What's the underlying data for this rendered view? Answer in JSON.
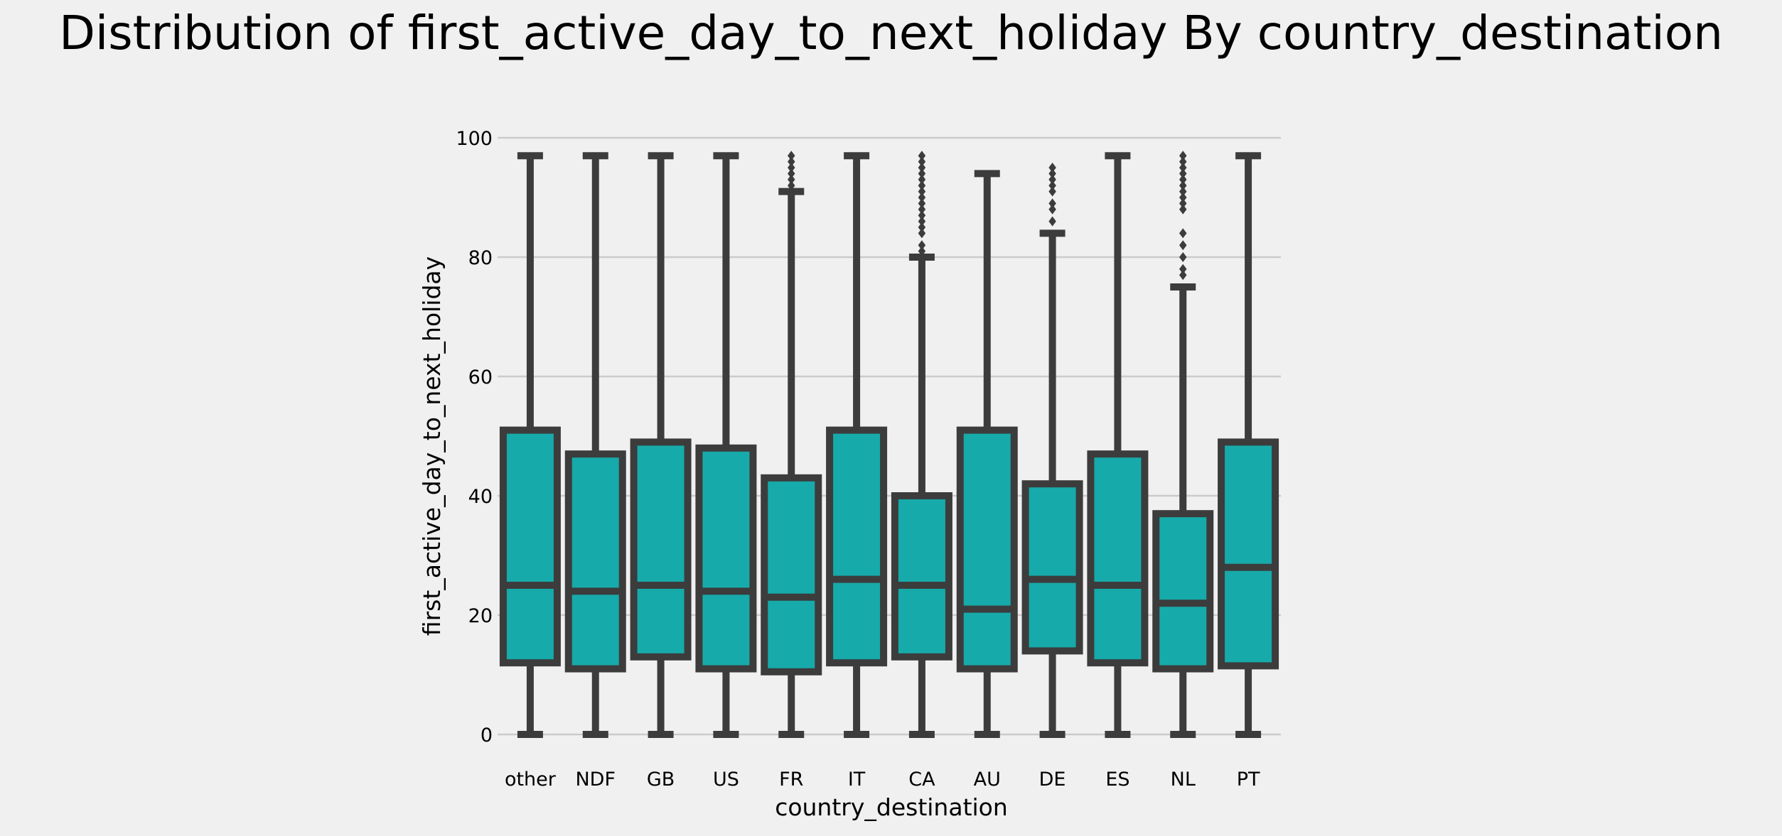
{
  "chart_data": {
    "type": "box",
    "title": "Distribution of first_active_day_to_next_holiday By country_destination",
    "xlabel": "country_destination",
    "ylabel": "first_active_day_to_next_holiday",
    "ylim": [
      0,
      100
    ],
    "yticks": [
      0,
      20,
      40,
      60,
      80,
      100
    ],
    "grid": "horizontal",
    "box_color": "#17aaaa",
    "edge_color": "#3c3c3c",
    "background_color": "#f0f0f0",
    "categories": [
      "other",
      "NDF",
      "GB",
      "US",
      "FR",
      "IT",
      "CA",
      "AU",
      "DE",
      "ES",
      "NL",
      "PT"
    ],
    "boxes": [
      {
        "category": "other",
        "whisker_low": 0,
        "q1": 12,
        "median": 25,
        "q3": 51,
        "whisker_high": 97,
        "outliers": []
      },
      {
        "category": "NDF",
        "whisker_low": 0,
        "q1": 11,
        "median": 24,
        "q3": 47,
        "whisker_high": 97,
        "outliers": []
      },
      {
        "category": "GB",
        "whisker_low": 0,
        "q1": 13,
        "median": 25,
        "q3": 49,
        "whisker_high": 97,
        "outliers": []
      },
      {
        "category": "US",
        "whisker_low": 0,
        "q1": 11,
        "median": 24,
        "q3": 48,
        "whisker_high": 97,
        "outliers": []
      },
      {
        "category": "FR",
        "whisker_low": 0,
        "q1": 10.5,
        "median": 23,
        "q3": 43,
        "whisker_high": 91,
        "outliers": [
          92,
          93,
          94,
          95,
          96,
          97
        ]
      },
      {
        "category": "IT",
        "whisker_low": 0,
        "q1": 12,
        "median": 26,
        "q3": 51,
        "whisker_high": 97,
        "outliers": []
      },
      {
        "category": "CA",
        "whisker_low": 0,
        "q1": 13,
        "median": 25,
        "q3": 40,
        "whisker_high": 80,
        "outliers": [
          81,
          82,
          84,
          85,
          86,
          87,
          88,
          89,
          90,
          91,
          92,
          93,
          94,
          95,
          96,
          97
        ]
      },
      {
        "category": "AU",
        "whisker_low": 0,
        "q1": 11,
        "median": 21,
        "q3": 51,
        "whisker_high": 94,
        "outliers": []
      },
      {
        "category": "DE",
        "whisker_low": 0,
        "q1": 14,
        "median": 26,
        "q3": 42,
        "whisker_high": 84,
        "outliers": [
          86,
          88,
          89,
          91,
          92,
          93,
          94,
          95
        ]
      },
      {
        "category": "ES",
        "whisker_low": 0,
        "q1": 12,
        "median": 25,
        "q3": 47,
        "whisker_high": 97,
        "outliers": []
      },
      {
        "category": "NL",
        "whisker_low": 0,
        "q1": 11,
        "median": 22,
        "q3": 37,
        "whisker_high": 75,
        "outliers": [
          77,
          78,
          80,
          82,
          84,
          88,
          89,
          90,
          91,
          92,
          93,
          94,
          95,
          96,
          97
        ]
      },
      {
        "category": "PT",
        "whisker_low": 0,
        "q1": 11.5,
        "median": 28,
        "q3": 49,
        "whisker_high": 97,
        "outliers": []
      }
    ]
  }
}
